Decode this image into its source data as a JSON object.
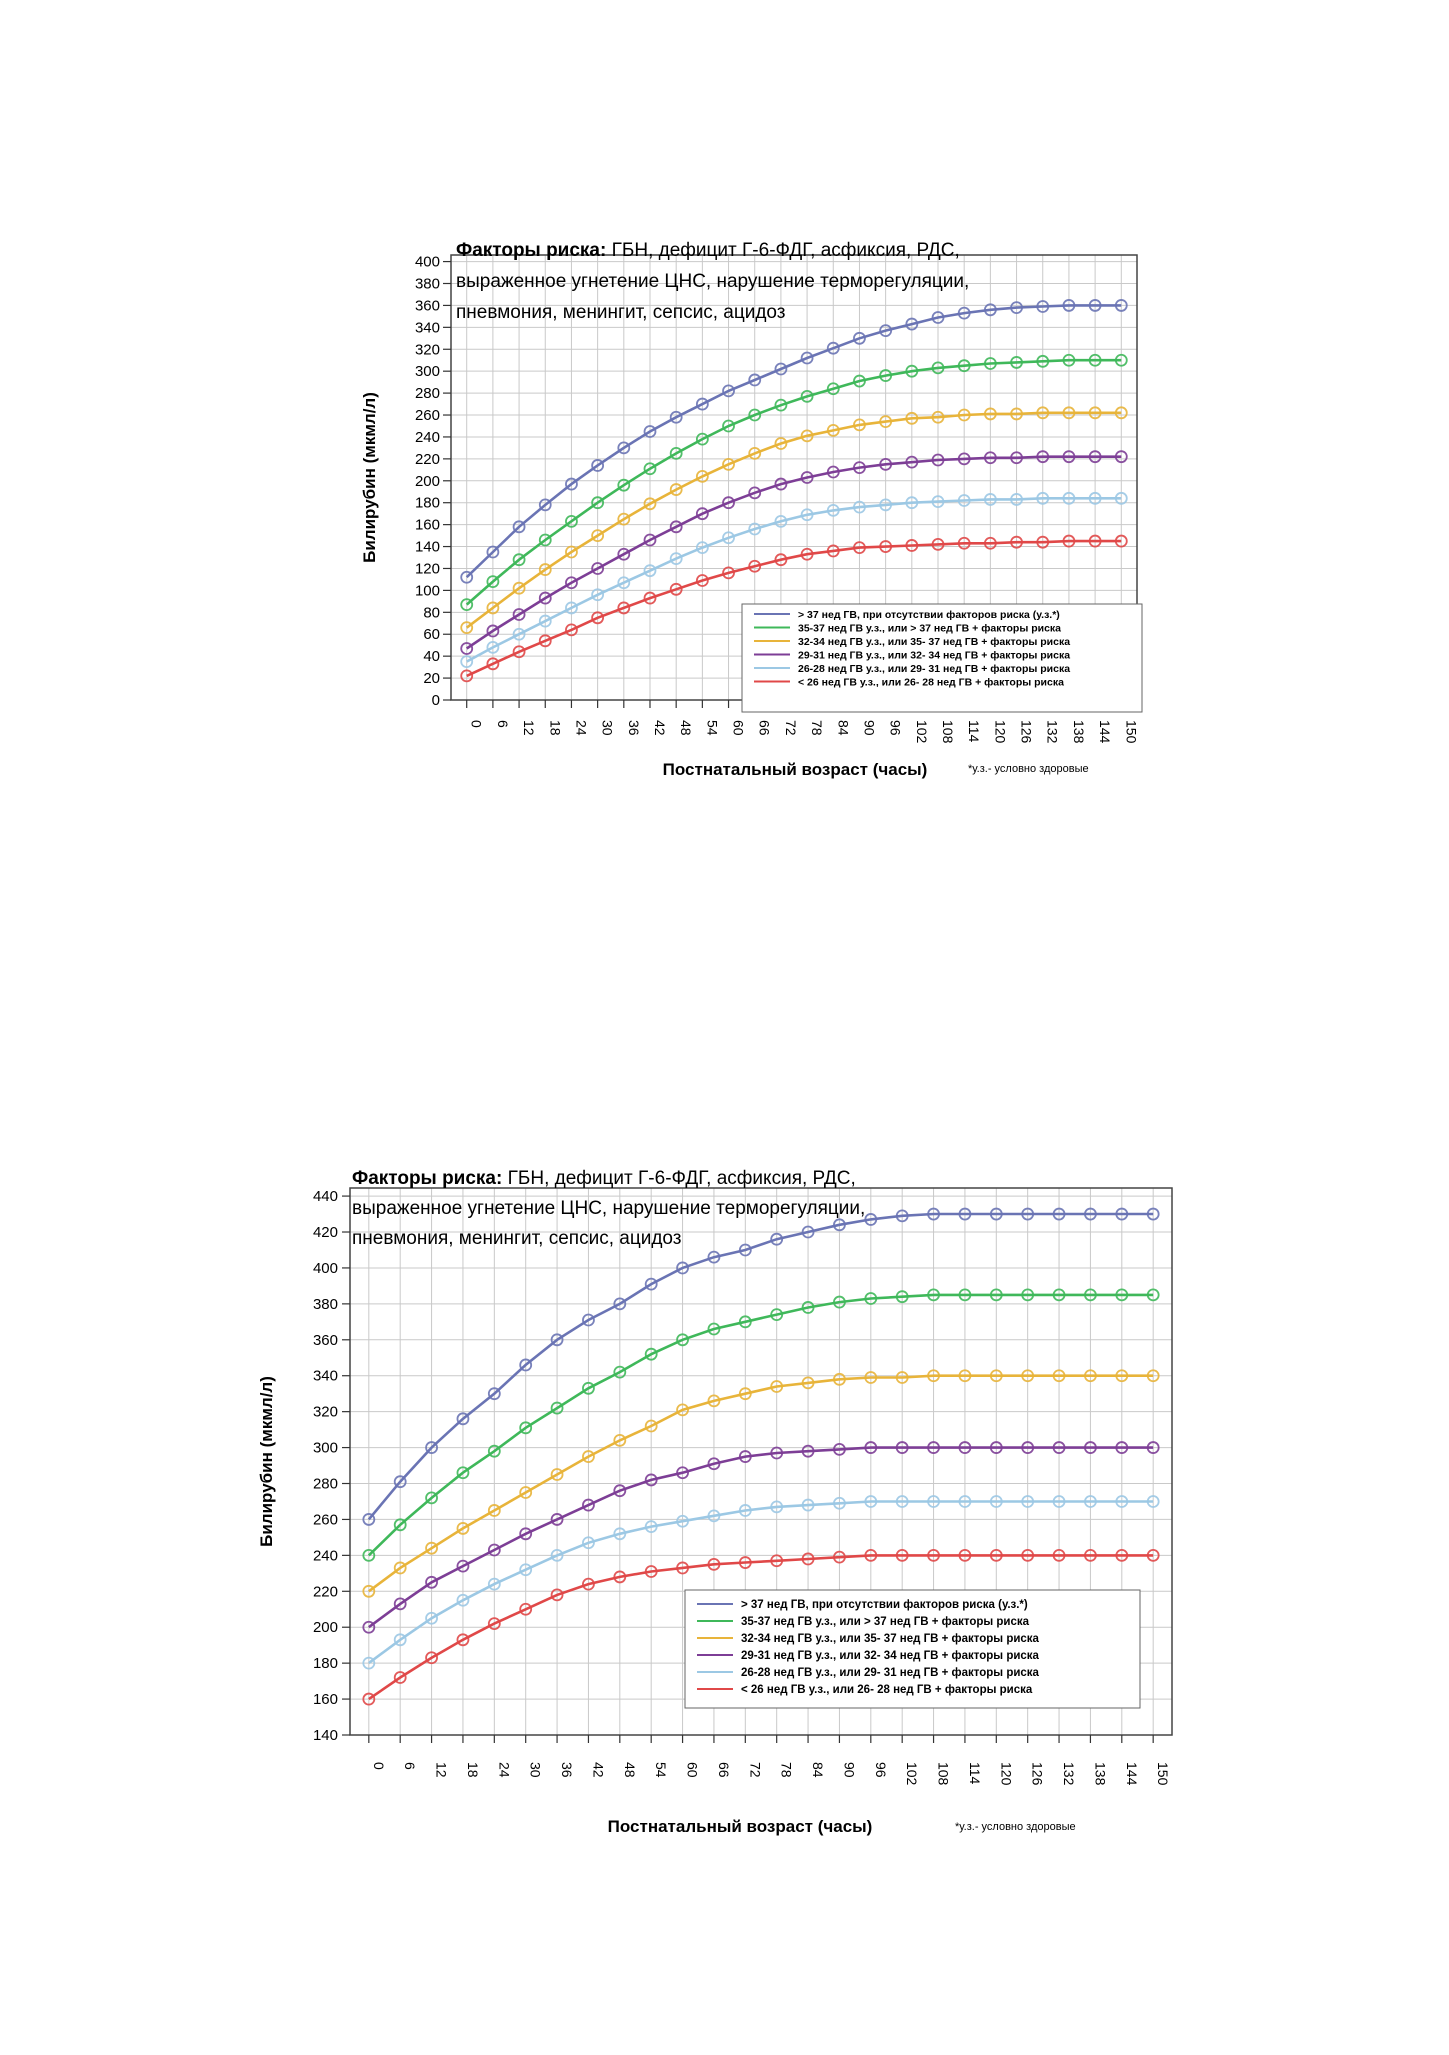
{
  "colors": {
    "series": [
      "#6a74b4",
      "#3fb85a",
      "#e8b43a",
      "#7d3e96",
      "#9cc8e4",
      "#e04848"
    ],
    "grid": "#c9c9c9",
    "frame": "#444444"
  },
  "chart_data": [
    {
      "type": "line",
      "risk_title": {
        "bold": "Факторы риска:",
        "line1": " ГБН, дефицит Г-6-ФДГ, асфиксия, РДС,",
        "line2": "выраженное угнетение ЦНС, нарушение терморегуляции,",
        "line3": "пневмония,  менингит, сепсис, ацидоз"
      },
      "ylabel": "Билирубин (мкмл/л)",
      "xlabel": "Постнатальный возраст (часы)",
      "note": "*у.з.- условно здоровые",
      "ylim": [
        0,
        400
      ],
      "yticks": [
        "0",
        "20",
        "40",
        "60",
        "80",
        "100",
        "120",
        "140",
        "160",
        "180",
        "200",
        "220",
        "240",
        "260",
        "280",
        "300",
        "320",
        "340",
        "360",
        "380",
        "400"
      ],
      "x": [
        "0",
        "6",
        "12",
        "18",
        "24",
        "30",
        "36",
        "42",
        "48",
        "54",
        "60",
        "66",
        "72",
        "78",
        "84",
        "90",
        "96",
        "102",
        "108",
        "114",
        "120",
        "126",
        "132",
        "138",
        "144",
        "150"
      ],
      "grid": true,
      "legend_position": "bottom-right",
      "series": [
        {
          "name": "> 37 нед ГВ, при отсутствии факторов риска  (у.з.*)",
          "values": [
            112,
            135,
            158,
            178,
            197,
            214,
            230,
            245,
            258,
            270,
            282,
            292,
            302,
            312,
            321,
            330,
            337,
            343,
            349,
            353,
            356,
            358,
            359,
            360,
            360,
            360
          ]
        },
        {
          "name": "35-37 нед ГВ у.з., или  > 37  нед  ГВ  + факторы риска",
          "values": [
            87,
            108,
            128,
            146,
            163,
            180,
            196,
            211,
            225,
            238,
            250,
            260,
            269,
            277,
            284,
            291,
            296,
            300,
            303,
            305,
            307,
            308,
            309,
            310,
            310,
            310
          ]
        },
        {
          "name": "32-34 нед ГВ у.з., или 35- 37 нед ГВ + факторы риска",
          "values": [
            66,
            84,
            102,
            119,
            135,
            150,
            165,
            179,
            192,
            204,
            215,
            225,
            234,
            241,
            246,
            251,
            254,
            257,
            258,
            260,
            261,
            261,
            262,
            262,
            262,
            262
          ]
        },
        {
          "name": "29-31 нед ГВ у.з., или 32- 34 нед ГВ + факторы риска",
          "values": [
            47,
            63,
            78,
            93,
            107,
            120,
            133,
            146,
            158,
            170,
            180,
            189,
            197,
            203,
            208,
            212,
            215,
            217,
            219,
            220,
            221,
            221,
            222,
            222,
            222,
            222
          ]
        },
        {
          "name": "26-28 нед ГВ у.з., или 29- 31 нед ГВ + факторы риска",
          "values": [
            35,
            48,
            60,
            72,
            84,
            96,
            107,
            118,
            129,
            139,
            148,
            156,
            163,
            169,
            173,
            176,
            178,
            180,
            181,
            182,
            183,
            183,
            184,
            184,
            184,
            184
          ]
        },
        {
          "name": "< 26 нед ГВ у.з.,   или 26- 28 нед ГВ + факторы риска",
          "values": [
            22,
            33,
            44,
            54,
            64,
            75,
            84,
            93,
            101,
            109,
            116,
            122,
            128,
            133,
            136,
            139,
            140,
            141,
            142,
            143,
            143,
            144,
            144,
            145,
            145,
            145
          ]
        }
      ]
    },
    {
      "type": "line",
      "risk_title": {
        "bold": "Факторы риска:",
        "line1": " ГБН, дефицит Г-6-ФДГ, асфиксия, РДС,",
        "line2": "выраженное угнетение ЦНС, нарушение терморегуляции,",
        "line3": "пневмония,  менингит, сепсис, ацидоз"
      },
      "ylabel": "Билирубин (мкмл/л)",
      "xlabel": "Постнатальный возраст (часы)",
      "note": "*у.з.- условно здоровые",
      "ylim": [
        140,
        440
      ],
      "yticks": [
        "140",
        "160",
        "180",
        "200",
        "220",
        "240",
        "260",
        "280",
        "300",
        "320",
        "340",
        "360",
        "380",
        "400",
        "420",
        "440"
      ],
      "x": [
        "0",
        "6",
        "12",
        "18",
        "24",
        "30",
        "36",
        "42",
        "48",
        "54",
        "60",
        "66",
        "72",
        "78",
        "84",
        "90",
        "96",
        "102",
        "108",
        "114",
        "120",
        "126",
        "132",
        "138",
        "144",
        "150"
      ],
      "grid": true,
      "legend_position": "bottom-right",
      "series": [
        {
          "name": "> 37 нед ГВ, при отсутствии факторов риска  (у.з.*)",
          "values": [
            260,
            281,
            300,
            316,
            330,
            346,
            360,
            371,
            380,
            391,
            400,
            406,
            410,
            416,
            420,
            424,
            427,
            429,
            430,
            430,
            430,
            430,
            430,
            430,
            430,
            430
          ]
        },
        {
          "name": "35-37 нед ГВ у.з., или  > 37  нед  ГВ  + факторы риска",
          "values": [
            240,
            257,
            272,
            286,
            298,
            311,
            322,
            333,
            342,
            352,
            360,
            366,
            370,
            374,
            378,
            381,
            383,
            384,
            385,
            385,
            385,
            385,
            385,
            385,
            385,
            385
          ]
        },
        {
          "name": "32-34 нед ГВ у.з., или 35- 37 нед ГВ + факторы риска",
          "values": [
            220,
            233,
            244,
            255,
            265,
            275,
            285,
            295,
            304,
            312,
            321,
            326,
            330,
            334,
            336,
            338,
            339,
            339,
            340,
            340,
            340,
            340,
            340,
            340,
            340,
            340
          ]
        },
        {
          "name": "29-31 нед ГВ у.з., или 32- 34 нед ГВ + факторы риска",
          "values": [
            200,
            213,
            225,
            234,
            243,
            252,
            260,
            268,
            276,
            282,
            286,
            291,
            295,
            297,
            298,
            299,
            300,
            300,
            300,
            300,
            300,
            300,
            300,
            300,
            300,
            300
          ]
        },
        {
          "name": "26-28 нед ГВ у.з., или 29- 31 нед ГВ + факторы риска",
          "values": [
            180,
            193,
            205,
            215,
            224,
            232,
            240,
            247,
            252,
            256,
            259,
            262,
            265,
            267,
            268,
            269,
            270,
            270,
            270,
            270,
            270,
            270,
            270,
            270,
            270,
            270
          ]
        },
        {
          "name": "< 26 нед ГВ у.з.,   или 26- 28 нед ГВ + факторы риска",
          "values": [
            160,
            172,
            183,
            193,
            202,
            210,
            218,
            224,
            228,
            231,
            233,
            235,
            236,
            237,
            238,
            239,
            240,
            240,
            240,
            240,
            240,
            240,
            240,
            240,
            240,
            240
          ]
        }
      ]
    }
  ]
}
